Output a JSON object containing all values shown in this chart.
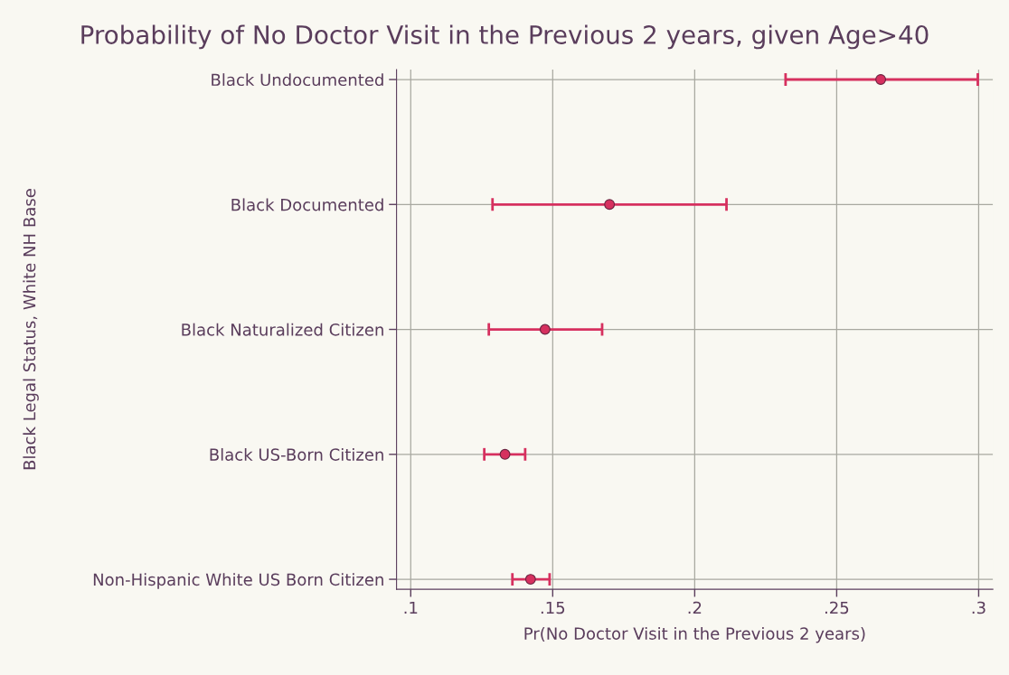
{
  "chart_data": {
    "type": "scatter",
    "orientation": "horizontal",
    "title": "Probability of No Doctor Visit in the Previous 2 years, given Age>40",
    "xlabel": "Pr(No Doctor Visit in the Previous 2 years)",
    "ylabel": "Black Legal Status, White NH Base",
    "categories": [
      "Black Undocumented",
      "Black Documented",
      "Black Naturalized Citizen",
      "Black US-Born Citizen",
      "Non-Hispanic White US Born Citizen"
    ],
    "series": [
      {
        "color": "#d6305f",
        "values": [
          0.2655,
          0.17,
          0.1473,
          0.1332,
          0.1422
        ],
        "errors": [
          [
            0.232,
            0.2997
          ],
          [
            0.1288,
            0.2112
          ],
          [
            0.1275,
            0.1674
          ],
          [
            0.1259,
            0.1403
          ],
          [
            0.1358,
            0.1489
          ]
        ]
      }
    ],
    "xlim": [
      0.095,
      0.305
    ],
    "xticks": [
      {
        "value": 0.1,
        "label": ".1"
      },
      {
        "value": 0.15,
        "label": ".15"
      },
      {
        "value": 0.2,
        "label": ".2"
      },
      {
        "value": 0.25,
        "label": ".25"
      },
      {
        "value": 0.3,
        "label": ".3"
      }
    ],
    "grid": true,
    "marker": "circle"
  }
}
